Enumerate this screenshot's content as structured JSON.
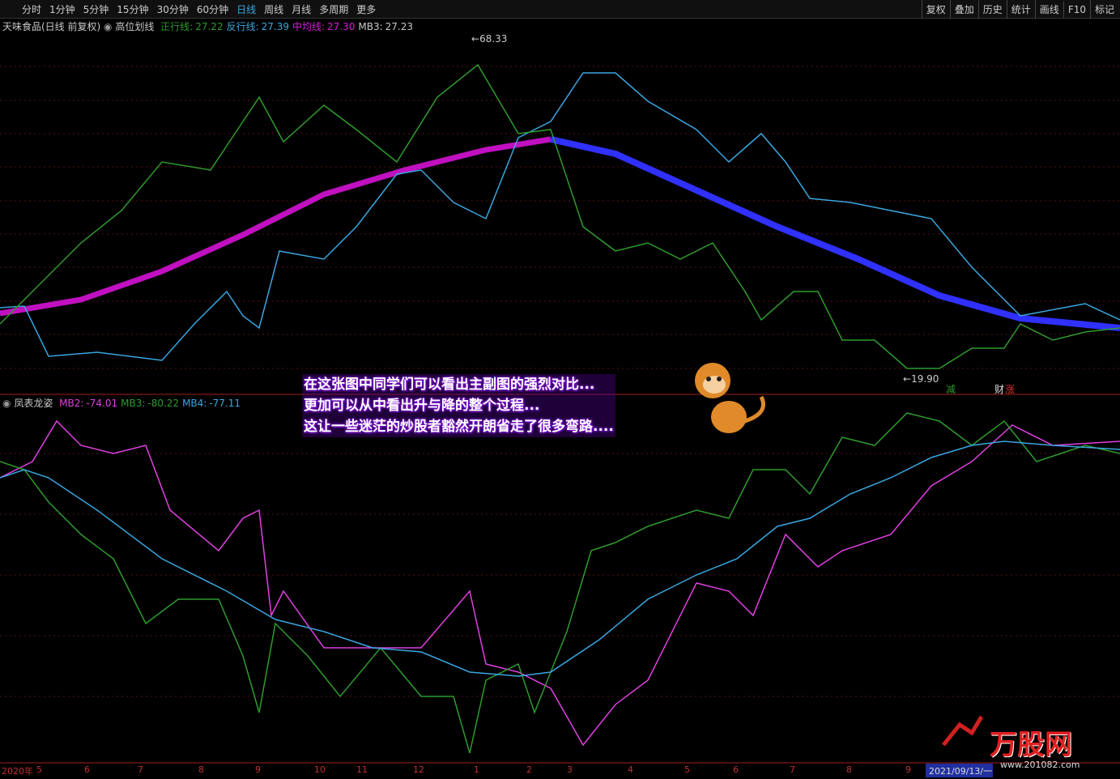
{
  "toolbar": {
    "periods": [
      "分时",
      "1分钟",
      "5分钟",
      "15分钟",
      "30分钟",
      "60分钟",
      "日线",
      "周线",
      "月线",
      "多周期",
      "更多"
    ],
    "active_period": "日线",
    "tools": [
      "复权",
      "叠加",
      "历史",
      "统计",
      "画线",
      "F10",
      "标记"
    ]
  },
  "main_panel": {
    "stock": "天味食品(日线 前复权)",
    "indicator": "高位划线",
    "legend": [
      {
        "name": "正行线:",
        "value": "27.22",
        "color": "#2e9b2e"
      },
      {
        "name": "反行线:",
        "value": "27.39",
        "color": "#3aa6e0"
      },
      {
        "name": "中均线:",
        "value": "27.30",
        "color": "#d020d0"
      },
      {
        "name": "MB3:",
        "value": "27.23",
        "color": "#c8c8c8"
      }
    ],
    "high_label": "68.33",
    "low_label": "19.90",
    "markers": [
      "减",
      "财",
      "涨"
    ]
  },
  "sub_panel": {
    "indicator": "凤表龙姿",
    "legend": [
      {
        "name": "MB2:",
        "value": "-74.01",
        "color": "#e040e0"
      },
      {
        "name": "MB3:",
        "value": "-80.22",
        "color": "#2e9b2e"
      },
      {
        "name": "MB4:",
        "value": "-77.11",
        "color": "#3aa6e0"
      }
    ]
  },
  "annotation": [
    "在这张图中同学们可以看出主副图的强烈对比...",
    "更加可以从中看出升与降的整个过程...",
    "这让一些迷茫的炒股者豁然开朗省走了很多弯路...."
  ],
  "time_axis": [
    "2020年",
    "5",
    "6",
    "7",
    "8",
    "9",
    "10",
    "11",
    "12",
    "1",
    "2",
    "3",
    "4",
    "5",
    "6",
    "7",
    "8",
    "9"
  ],
  "cursor_date": "2021/09/13/一",
  "watermark": {
    "name": "万股网",
    "url": "www.201082.com"
  }
}
